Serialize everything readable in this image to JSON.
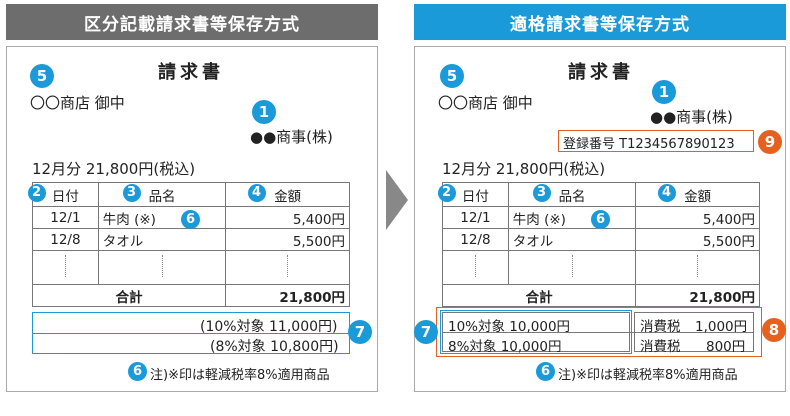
{
  "left": {
    "header": "区分記載請求書等保存方式",
    "header_color": "#6d6d6d",
    "invoice_title": "請求書",
    "recipient": "〇〇商店 御中",
    "issuer": "●●商事(株)",
    "total_line": "12月分 21,800円(税込)",
    "table": {
      "headers": [
        "日付",
        "品名",
        "金額"
      ],
      "rows": [
        {
          "date": "12/1",
          "item": "牛肉 (※)",
          "amount": "5,400円"
        },
        {
          "date": "12/8",
          "item": "タオル",
          "amount": "5,500円"
        }
      ],
      "total_label": "合計",
      "total_value": "21,800円",
      "breakdown": [
        "(10%対象 11,000円)",
        "(8%対象 10,800円)"
      ]
    },
    "note": "注)※印は軽減税率8%適用商品"
  },
  "right": {
    "header": "適格請求書等保存方式",
    "header_color": "#1a9ad9",
    "invoice_title": "請求書",
    "recipient": "〇〇商店 御中",
    "issuer": "●●商事(株)",
    "registration": "登録番号 T1234567890123",
    "total_line": "12月分 21,800円(税込)",
    "table": {
      "headers": [
        "日付",
        "品名",
        "金額"
      ],
      "rows": [
        {
          "date": "12/1",
          "item": "牛肉 (※)",
          "amount": "5,400円"
        },
        {
          "date": "12/8",
          "item": "タオル",
          "amount": "5,500円"
        }
      ],
      "total_label": "合計",
      "total_value": "21,800円",
      "breakdown": [
        {
          "label": "10%対象 10,000円",
          "tax_label": "消費税",
          "tax_value": "1,000円"
        },
        {
          "label": "8%対象 10,000円",
          "tax_label": "消費税",
          "tax_value": "800円"
        }
      ]
    },
    "note": "注)※印は軽減税率8%適用商品"
  },
  "badges": {
    "n1": "1",
    "n2": "2",
    "n3": "3",
    "n4": "4",
    "n5": "5",
    "n6": "6",
    "n7": "7",
    "n8": "8",
    "n9": "9"
  },
  "colors": {
    "accent_blue": "#1a9ad9",
    "accent_orange": "#e6601f",
    "arrow_gray": "#888888"
  }
}
